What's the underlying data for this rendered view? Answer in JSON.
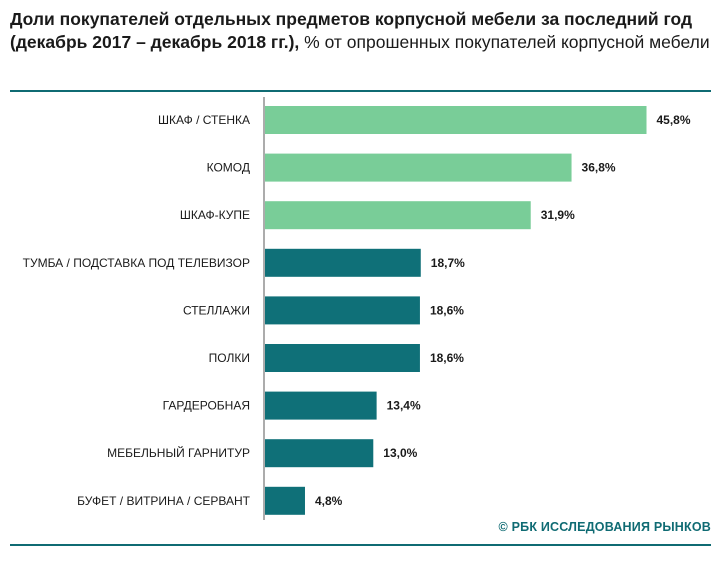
{
  "header": {
    "title_bold": "Доли покупателей отдельных предметов корпусной мебели за последний год (декабрь 2017 – декабрь 2018 гг.),",
    "title_rest": " % от опрошенных покупателей корпусной мебели"
  },
  "source": "© РБК ИССЛЕДОВАНИЯ РЫНКОВ",
  "colors": {
    "accent": "#0f6b73",
    "highlight": "#79cd98",
    "axis": "#595959"
  },
  "chart_data": {
    "type": "bar",
    "orientation": "horizontal",
    "categories": [
      "ШКАФ / СТЕНКА",
      "КОМОД",
      "ШКАФ-КУПЕ",
      "ТУМБА / ПОДСТАВКА ПОД ТЕЛЕВИЗОР",
      "СТЕЛЛАЖИ",
      "ПОЛКИ",
      "ГАРДЕРОБНАЯ",
      "МЕБЕЛЬНЫЙ ГАРНИТУР",
      "БУФЕТ / ВИТРИНА / СЕРВАНТ"
    ],
    "values": [
      45.8,
      36.8,
      31.9,
      18.7,
      18.6,
      18.6,
      13.4,
      13.0,
      4.8
    ],
    "value_labels": [
      "45,8%",
      "36,8%",
      "31,9%",
      "18,7%",
      "18,6%",
      "18,6%",
      "13,4%",
      "13,0%",
      "4,8%"
    ],
    "bar_colors": [
      "#79cd98",
      "#79cd98",
      "#79cd98",
      "#0f7078",
      "#0f7078",
      "#0f7078",
      "#0f7078",
      "#0f7078",
      "#0f7078"
    ],
    "xlim": [
      0,
      50
    ],
    "grid": false,
    "legend": "none"
  }
}
